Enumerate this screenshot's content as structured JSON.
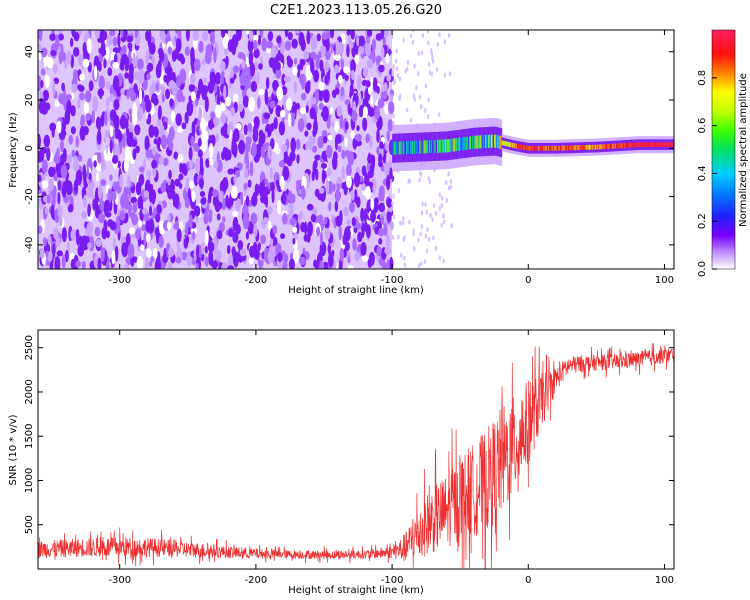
{
  "title": "C2E1.2023.113.05.26.G20",
  "colors": {
    "snr_line": "#f03030",
    "axis": "#000000",
    "spectrogram_base": "#8a2be2"
  },
  "chart_data": [
    {
      "type": "heatmap",
      "xlabel": "Height of straight line (km)",
      "ylabel": "Frequency (Hz)",
      "xlim": [
        -360,
        107
      ],
      "ylim": [
        -50,
        49
      ],
      "xticks": [
        -300,
        -200,
        -100,
        0,
        100
      ],
      "yticks": [
        -40,
        -20,
        0,
        20,
        40
      ],
      "xtick_labels": [
        "-300",
        "-200",
        "-100",
        "0",
        "100"
      ],
      "ytick_labels": [
        "-40",
        "-20",
        "0",
        "20",
        "40"
      ],
      "colorbar": {
        "label": "Normalized spectral amplitude",
        "range": [
          0,
          1
        ],
        "ticks": [
          0.0,
          0.2,
          0.4,
          0.6,
          0.8
        ],
        "tick_labels": [
          "0.0",
          "0.2",
          "0.4",
          "0.6",
          "0.8"
        ]
      },
      "noise_region_x": [
        -360,
        -100
      ],
      "signal_track": [
        {
          "x": -100,
          "y": 0.0,
          "amp": 0.35
        },
        {
          "x": -80,
          "y": 0.5,
          "amp": 0.4
        },
        {
          "x": -60,
          "y": 1.0,
          "amp": 0.45
        },
        {
          "x": -40,
          "y": 2.5,
          "amp": 0.45
        },
        {
          "x": -25,
          "y": 3.0,
          "amp": 0.5
        },
        {
          "x": -10,
          "y": 1.0,
          "amp": 0.85
        },
        {
          "x": 0,
          "y": 0.0,
          "amp": 0.9
        },
        {
          "x": 20,
          "y": 0.0,
          "amp": 0.85
        },
        {
          "x": 50,
          "y": 0.5,
          "amp": 0.8
        },
        {
          "x": 80,
          "y": 1.5,
          "amp": 0.95
        },
        {
          "x": 107,
          "y": 1.5,
          "amp": 0.95
        }
      ]
    },
    {
      "type": "line",
      "xlabel": "Height of straight line (km)",
      "ylabel": "SNR (10 * v/v)",
      "xlim": [
        -360,
        107
      ],
      "ylim": [
        0,
        2700
      ],
      "xticks": [
        -300,
        -200,
        -100,
        0,
        100
      ],
      "yticks": [
        500,
        1000,
        1500,
        2000,
        2500
      ],
      "xtick_labels": [
        "-300",
        "-200",
        "-100",
        "0",
        "100"
      ],
      "ytick_labels": [
        "500",
        "1000",
        "1500",
        "2000",
        "2500"
      ],
      "series": [
        {
          "x": [
            -360,
            -330,
            -300,
            -270,
            -240,
            -210,
            -180,
            -150,
            -120,
            -100,
            -90,
            -80,
            -70,
            -60,
            -50,
            -40,
            -30,
            -20,
            -10,
            0,
            10,
            20,
            30,
            40,
            50,
            60,
            70,
            80,
            90,
            100,
            107
          ],
          "mean": [
            220,
            240,
            250,
            240,
            210,
            180,
            165,
            160,
            165,
            190,
            240,
            430,
            560,
            650,
            800,
            900,
            1000,
            1200,
            1400,
            1650,
            1900,
            2150,
            2300,
            2320,
            2330,
            2340,
            2350,
            2370,
            2390,
            2410,
            2420
          ],
          "spread": [
            140,
            150,
            170,
            150,
            120,
            90,
            70,
            70,
            70,
            100,
            250,
            450,
            550,
            600,
            700,
            750,
            850,
            900,
            800,
            700,
            450,
            200,
            150,
            140,
            130,
            130,
            130,
            130,
            130,
            130,
            130
          ]
        }
      ]
    }
  ]
}
